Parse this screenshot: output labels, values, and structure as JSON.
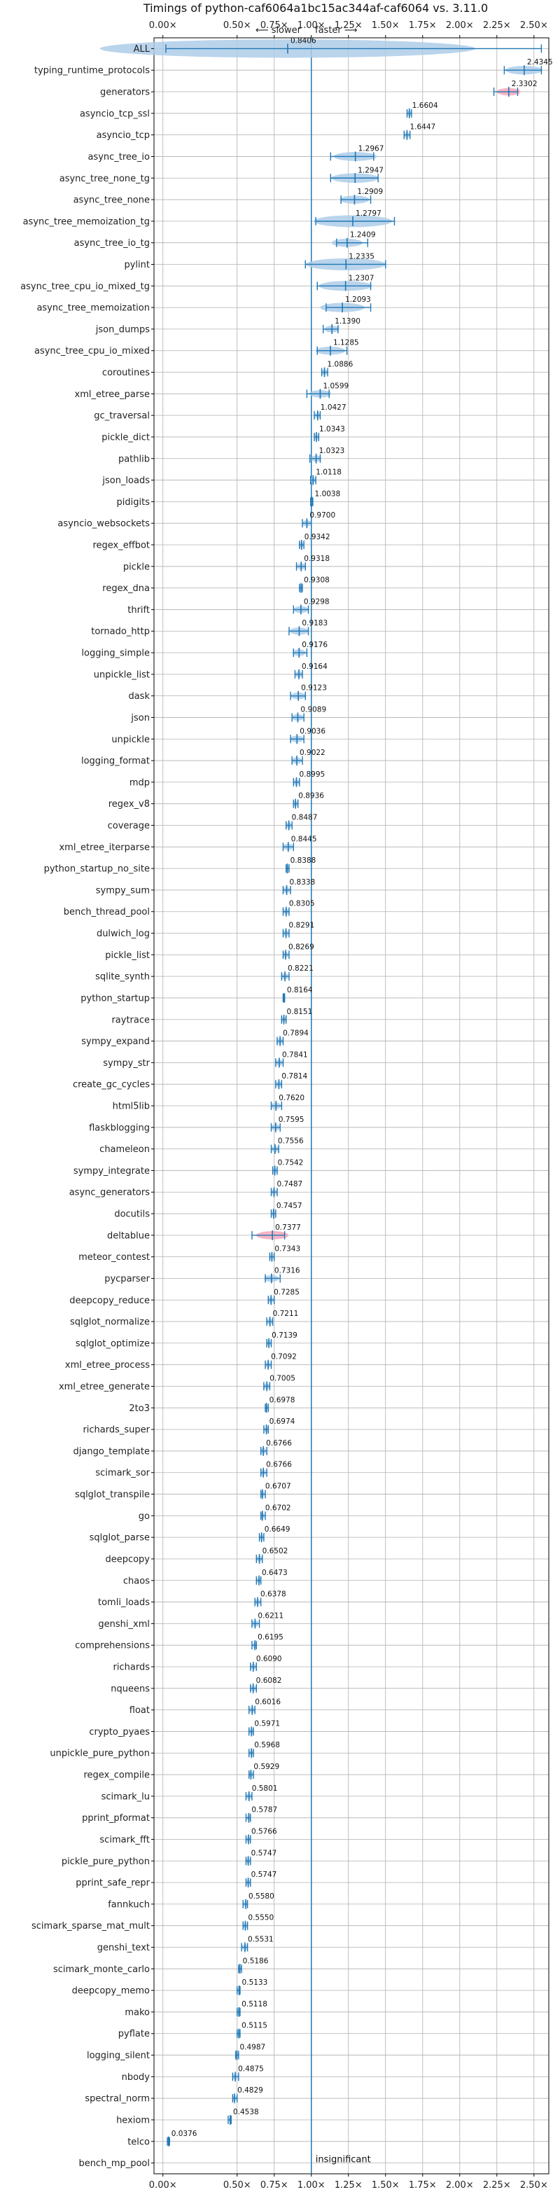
{
  "chart_data": {
    "type": "violin",
    "title": "Timings of python-caf6064a1bc15ac344af-caf6064 vs. 3.11.0",
    "x_ticks": [
      "0.00×",
      "0.50×",
      "0.75×",
      "1.00×",
      "1.25×",
      "1.50×",
      "1.75×",
      "2.00×",
      "2.25×",
      "2.50×"
    ],
    "x_tick_values": [
      0.0,
      0.5,
      0.75,
      1.0,
      1.25,
      1.5,
      1.75,
      2.0,
      2.25,
      2.5
    ],
    "xlim": [
      -0.06,
      2.6
    ],
    "reference_line": 1.0,
    "slower_label": "⟵ slower",
    "faster_label": "faster ⟶",
    "annotation": "insignificant",
    "grid": true,
    "colors": {
      "normal": "#1f77b4",
      "body": "#aecde9",
      "highlight": "#f4a7b9",
      "grid": "#b0b0b0",
      "axis": "#000000"
    },
    "categories": [
      "ALL",
      "typing_runtime_protocols",
      "generators",
      "asyncio_tcp_ssl",
      "asyncio_tcp",
      "async_tree_io",
      "async_tree_none_tg",
      "async_tree_none",
      "async_tree_memoization_tg",
      "async_tree_io_tg",
      "pylint",
      "async_tree_cpu_io_mixed_tg",
      "async_tree_memoization",
      "json_dumps",
      "async_tree_cpu_io_mixed",
      "coroutines",
      "xml_etree_parse",
      "gc_traversal",
      "pickle_dict",
      "pathlib",
      "json_loads",
      "pidigits",
      "asyncio_websockets",
      "regex_effbot",
      "pickle",
      "regex_dna",
      "thrift",
      "tornado_http",
      "logging_simple",
      "unpickle_list",
      "dask",
      "json",
      "unpickle",
      "logging_format",
      "mdp",
      "regex_v8",
      "coverage",
      "xml_etree_iterparse",
      "python_startup_no_site",
      "sympy_sum",
      "bench_thread_pool",
      "dulwich_log",
      "pickle_list",
      "sqlite_synth",
      "python_startup",
      "raytrace",
      "sympy_expand",
      "sympy_str",
      "create_gc_cycles",
      "html5lib",
      "flaskblogging",
      "chameleon",
      "sympy_integrate",
      "async_generators",
      "docutils",
      "deltablue",
      "meteor_contest",
      "pycparser",
      "deepcopy_reduce",
      "sqlglot_normalize",
      "sqlglot_optimize",
      "xml_etree_process",
      "xml_etree_generate",
      "2to3",
      "richards_super",
      "django_template",
      "scimark_sor",
      "sqlglot_transpile",
      "go",
      "sqlglot_parse",
      "deepcopy",
      "chaos",
      "tomli_loads",
      "genshi_xml",
      "comprehensions",
      "richards",
      "nqueens",
      "float",
      "crypto_pyaes",
      "unpickle_pure_python",
      "regex_compile",
      "scimark_lu",
      "pprint_pformat",
      "scimark_fft",
      "pickle_pure_python",
      "pprint_safe_repr",
      "fannkuch",
      "scimark_sparse_mat_mult",
      "genshi_text",
      "scimark_monte_carlo",
      "deepcopy_memo",
      "mako",
      "pyflate",
      "logging_silent",
      "nbody",
      "spectral_norm",
      "hexiom",
      "telco",
      "bench_mp_pool"
    ],
    "values": [
      0.8406,
      2.4345,
      2.3302,
      1.6604,
      1.6447,
      1.2967,
      1.2947,
      1.2909,
      1.2797,
      1.2409,
      1.2335,
      1.2307,
      1.2093,
      1.139,
      1.1285,
      1.0886,
      1.0599,
      1.0427,
      1.0343,
      1.0323,
      1.0118,
      1.0038,
      0.97,
      0.9342,
      0.9318,
      0.9308,
      0.9298,
      0.9183,
      0.9176,
      0.9164,
      0.9123,
      0.9089,
      0.9036,
      0.9022,
      0.8995,
      0.8936,
      0.8487,
      0.8445,
      0.8388,
      0.8338,
      0.8305,
      0.8291,
      0.8269,
      0.8221,
      0.8164,
      0.8151,
      0.7894,
      0.7841,
      0.7814,
      0.762,
      0.7595,
      0.7556,
      0.7542,
      0.7487,
      0.7457,
      0.7377,
      0.7343,
      0.7316,
      0.7285,
      0.7211,
      0.7139,
      0.7092,
      0.7005,
      0.6978,
      0.6974,
      0.6766,
      0.6766,
      0.6707,
      0.6702,
      0.6649,
      0.6502,
      0.6473,
      0.6378,
      0.6211,
      0.6195,
      0.609,
      0.6082,
      0.6016,
      0.5971,
      0.5968,
      0.5929,
      0.5801,
      0.5787,
      0.5766,
      0.5747,
      0.5747,
      0.558,
      0.555,
      0.5531,
      0.5186,
      0.5133,
      0.5118,
      0.5115,
      0.4987,
      0.4875,
      0.4829,
      0.4538,
      0.0376,
      null
    ],
    "ranges": [
      [
        0.02,
        2.55
      ],
      [
        2.3,
        2.55
      ],
      [
        2.23,
        2.39
      ],
      [
        1.645,
        1.675
      ],
      [
        1.625,
        1.665
      ],
      [
        1.13,
        1.42
      ],
      [
        1.13,
        1.45
      ],
      [
        1.2,
        1.4
      ],
      [
        1.03,
        1.56
      ],
      [
        1.17,
        1.38
      ],
      [
        0.96,
        1.5
      ],
      [
        1.04,
        1.4
      ],
      [
        1.1,
        1.4
      ],
      [
        1.08,
        1.18
      ],
      [
        1.04,
        1.24
      ],
      [
        1.07,
        1.11
      ],
      [
        0.97,
        1.12
      ],
      [
        1.02,
        1.06
      ],
      [
        1.02,
        1.05
      ],
      [
        0.99,
        1.06
      ],
      [
        0.995,
        1.03
      ],
      [
        0.995,
        1.01
      ],
      [
        0.94,
        1.0
      ],
      [
        0.92,
        0.95
      ],
      [
        0.9,
        0.96
      ],
      [
        0.92,
        0.94
      ],
      [
        0.88,
        0.98
      ],
      [
        0.85,
        0.98
      ],
      [
        0.88,
        0.97
      ],
      [
        0.89,
        0.94
      ],
      [
        0.86,
        0.96
      ],
      [
        0.87,
        0.95
      ],
      [
        0.86,
        0.95
      ],
      [
        0.87,
        0.94
      ],
      [
        0.88,
        0.92
      ],
      [
        0.88,
        0.91
      ],
      [
        0.83,
        0.87
      ],
      [
        0.81,
        0.88
      ],
      [
        0.83,
        0.85
      ],
      [
        0.81,
        0.86
      ],
      [
        0.81,
        0.85
      ],
      [
        0.81,
        0.85
      ],
      [
        0.81,
        0.85
      ],
      [
        0.8,
        0.85
      ],
      [
        0.81,
        0.82
      ],
      [
        0.8,
        0.83
      ],
      [
        0.77,
        0.81
      ],
      [
        0.76,
        0.81
      ],
      [
        0.76,
        0.8
      ],
      [
        0.73,
        0.8
      ],
      [
        0.73,
        0.79
      ],
      [
        0.73,
        0.78
      ],
      [
        0.74,
        0.77
      ],
      [
        0.73,
        0.77
      ],
      [
        0.73,
        0.76
      ],
      [
        0.6,
        0.82
      ],
      [
        0.72,
        0.75
      ],
      [
        0.69,
        0.79
      ],
      [
        0.71,
        0.75
      ],
      [
        0.7,
        0.74
      ],
      [
        0.7,
        0.73
      ],
      [
        0.69,
        0.73
      ],
      [
        0.68,
        0.72
      ],
      [
        0.69,
        0.71
      ],
      [
        0.68,
        0.71
      ],
      [
        0.66,
        0.7
      ],
      [
        0.66,
        0.7
      ],
      [
        0.66,
        0.69
      ],
      [
        0.66,
        0.69
      ],
      [
        0.65,
        0.68
      ],
      [
        0.63,
        0.67
      ],
      [
        0.63,
        0.66
      ],
      [
        0.62,
        0.66
      ],
      [
        0.6,
        0.65
      ],
      [
        0.6,
        0.63
      ],
      [
        0.59,
        0.63
      ],
      [
        0.59,
        0.63
      ],
      [
        0.58,
        0.62
      ],
      [
        0.58,
        0.61
      ],
      [
        0.58,
        0.61
      ],
      [
        0.58,
        0.61
      ],
      [
        0.56,
        0.6
      ],
      [
        0.56,
        0.59
      ],
      [
        0.56,
        0.59
      ],
      [
        0.56,
        0.59
      ],
      [
        0.56,
        0.59
      ],
      [
        0.54,
        0.57
      ],
      [
        0.54,
        0.57
      ],
      [
        0.53,
        0.57
      ],
      [
        0.51,
        0.53
      ],
      [
        0.5,
        0.52
      ],
      [
        0.5,
        0.52
      ],
      [
        0.5,
        0.52
      ],
      [
        0.49,
        0.51
      ],
      [
        0.47,
        0.51
      ],
      [
        0.47,
        0.5
      ],
      [
        0.44,
        0.46
      ],
      [
        0.03,
        0.045
      ],
      null
    ],
    "highlighted": [
      "generators",
      "deltablue"
    ]
  }
}
